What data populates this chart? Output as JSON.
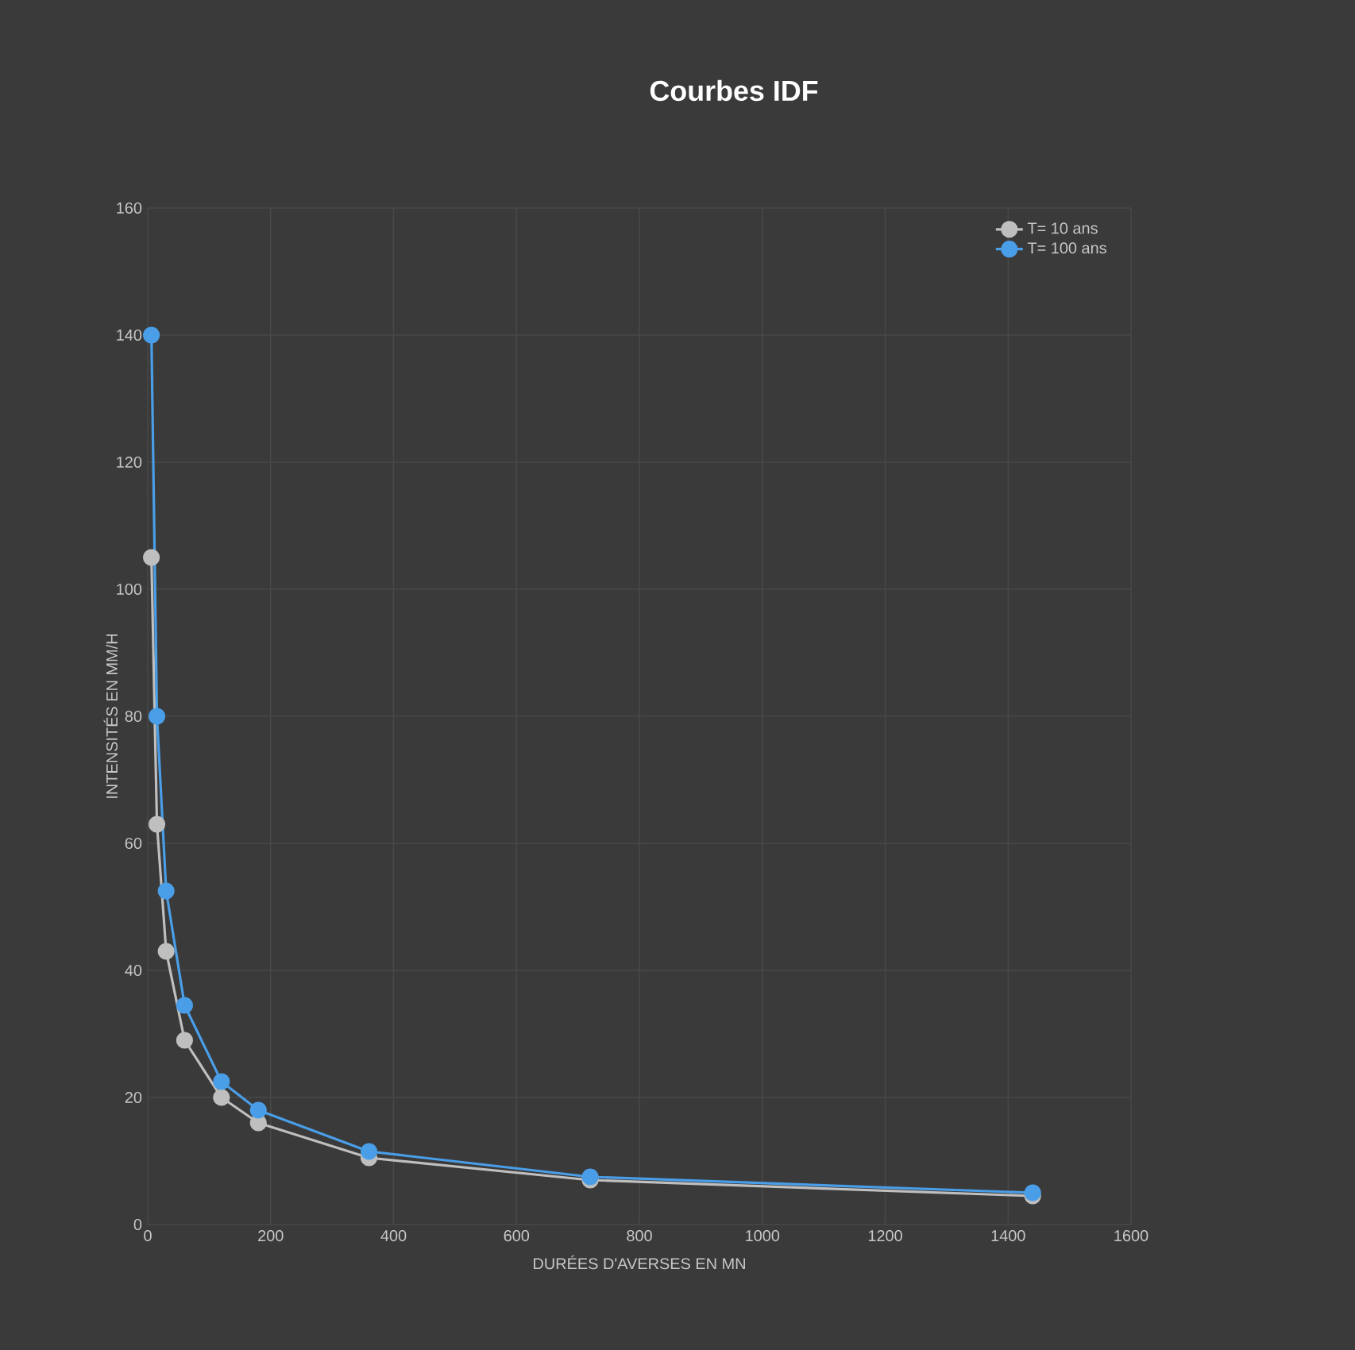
{
  "chart_data": {
    "type": "line",
    "title": "Courbes IDF",
    "xlabel": "DURÉES D'AVERSES EN MN",
    "ylabel": "INTENSITÉS EN MM/H",
    "x": [
      6,
      15,
      30,
      60,
      120,
      180,
      360,
      720,
      1440
    ],
    "series": [
      {
        "name": "T= 10 ans",
        "color": "#bfbfbf",
        "values": [
          105,
          63,
          43,
          29,
          20,
          16,
          10.5,
          7,
          4.5
        ]
      },
      {
        "name": "T= 100 ans",
        "color": "#4a9ee8",
        "values": [
          140,
          80,
          52.5,
          34.5,
          22.5,
          18,
          11.5,
          7.5,
          5
        ]
      }
    ],
    "xlim": [
      0,
      1600
    ],
    "xticks": [
      0,
      200,
      400,
      600,
      800,
      1000,
      1200,
      1400,
      1600
    ],
    "ylim": [
      0,
      160
    ],
    "yticks": [
      0,
      20,
      40,
      60,
      80,
      100,
      120,
      140,
      160
    ],
    "grid": true,
    "legend": "top right",
    "marker": "circle",
    "line_style": "solid"
  }
}
